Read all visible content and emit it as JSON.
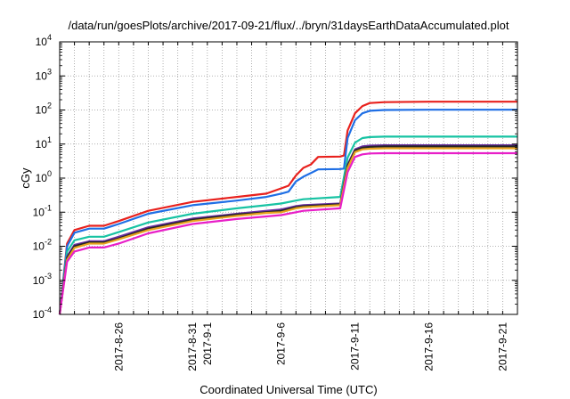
{
  "chart_data": {
    "type": "line",
    "title": "/data/run/goesPlots/archive/2017-09-21/flux/../bryn/31daysEarthDataAccumulated.plot",
    "xlabel": "Coordinated Universal Time (UTC)",
    "ylabel": "cGy",
    "xlim": [
      "2017-08-22",
      "2017-09-22"
    ],
    "ylim": [
      0.0001,
      10000
    ],
    "yscale": "log",
    "grid": true,
    "legend": "none",
    "x_ticks": [
      "2017-8-26",
      "2017-8-31",
      "2017-9-1",
      "2017-9-6",
      "2017-9-11",
      "2017-9-16",
      "2017-9-21"
    ],
    "y_ticks": [
      {
        "base": "10",
        "exp": "-4"
      },
      {
        "base": "10",
        "exp": "-3"
      },
      {
        "base": "10",
        "exp": "-2"
      },
      {
        "base": "10",
        "exp": "-1"
      },
      {
        "base": "10",
        "exp": "0"
      },
      {
        "base": "10",
        "exp": "1"
      },
      {
        "base": "10",
        "exp": "2"
      },
      {
        "base": "10",
        "exp": "3"
      },
      {
        "base": "10",
        "exp": "4"
      }
    ],
    "series": [
      {
        "color": "#e8211d",
        "x": [
          "2017-08-22",
          "2017-08-22T12:00",
          "2017-08-23",
          "2017-08-24",
          "2017-08-25",
          "2017-08-26",
          "2017-08-28",
          "2017-08-31",
          "2017-09-03",
          "2017-09-05",
          "2017-09-06",
          "2017-09-06T12:00",
          "2017-09-07",
          "2017-09-07T12:00",
          "2017-09-08",
          "2017-09-08T12:00",
          "2017-09-10",
          "2017-09-10T06:00",
          "2017-09-10T12:00",
          "2017-09-11",
          "2017-09-11T12:00",
          "2017-09-12",
          "2017-09-13",
          "2017-09-16",
          "2017-09-22"
        ],
        "y": [
          0.0001,
          0.012,
          0.03,
          0.04,
          0.04,
          0.055,
          0.11,
          0.2,
          0.28,
          0.35,
          0.5,
          0.6,
          1.2,
          2.0,
          2.5,
          4.2,
          4.3,
          4.6,
          25,
          80,
          130,
          160,
          170,
          175,
          175
        ]
      },
      {
        "color": "#1f6fe5",
        "x": [
          "2017-08-22",
          "2017-08-22T12:00",
          "2017-08-23",
          "2017-08-24",
          "2017-08-25",
          "2017-08-26",
          "2017-08-28",
          "2017-08-31",
          "2017-09-03",
          "2017-09-05",
          "2017-09-06",
          "2017-09-06T12:00",
          "2017-09-07",
          "2017-09-07T12:00",
          "2017-09-08",
          "2017-09-08T12:00",
          "2017-09-10",
          "2017-09-10T06:00",
          "2017-09-10T12:00",
          "2017-09-11",
          "2017-09-11T12:00",
          "2017-09-12",
          "2017-09-13",
          "2017-09-16",
          "2017-09-22"
        ],
        "y": [
          0.0001,
          0.01,
          0.025,
          0.033,
          0.033,
          0.045,
          0.09,
          0.16,
          0.22,
          0.28,
          0.35,
          0.4,
          0.8,
          1.1,
          1.4,
          1.8,
          1.85,
          1.9,
          15,
          50,
          80,
          95,
          100,
          102,
          102
        ]
      },
      {
        "color": "#17c3a3",
        "x": [
          "2017-08-22",
          "2017-08-22T12:00",
          "2017-08-23",
          "2017-08-24",
          "2017-08-25",
          "2017-08-26",
          "2017-08-28",
          "2017-08-31",
          "2017-09-03",
          "2017-09-05",
          "2017-09-06",
          "2017-09-07",
          "2017-09-07T12:00",
          "2017-09-10",
          "2017-09-10T12:00",
          "2017-09-11",
          "2017-09-11T12:00",
          "2017-09-12",
          "2017-09-13",
          "2017-09-22"
        ],
        "y": [
          0.0001,
          0.007,
          0.015,
          0.019,
          0.019,
          0.026,
          0.05,
          0.09,
          0.13,
          0.16,
          0.18,
          0.22,
          0.24,
          0.28,
          4,
          11,
          15,
          16,
          16.5,
          16.5
        ]
      },
      {
        "color": "#6a2fa3",
        "x": [
          "2017-08-22",
          "2017-08-22T12:00",
          "2017-08-23",
          "2017-08-24",
          "2017-08-25",
          "2017-08-26",
          "2017-08-28",
          "2017-08-31",
          "2017-09-03",
          "2017-09-05",
          "2017-09-06",
          "2017-09-07",
          "2017-09-07T12:00",
          "2017-09-10",
          "2017-09-10T12:00",
          "2017-09-11",
          "2017-09-11T12:00",
          "2017-09-12",
          "2017-09-13",
          "2017-09-22"
        ],
        "y": [
          0.0001,
          0.005,
          0.011,
          0.014,
          0.014,
          0.019,
          0.036,
          0.065,
          0.09,
          0.11,
          0.12,
          0.15,
          0.16,
          0.18,
          2.5,
          7,
          8.5,
          9,
          9.2,
          9.2
        ]
      },
      {
        "color": "#262626",
        "x": [
          "2017-08-22",
          "2017-08-22T12:00",
          "2017-08-23",
          "2017-08-24",
          "2017-08-25",
          "2017-08-26",
          "2017-08-28",
          "2017-08-31",
          "2017-09-03",
          "2017-09-05",
          "2017-09-06",
          "2017-09-07",
          "2017-09-07T12:00",
          "2017-09-10",
          "2017-09-10T12:00",
          "2017-09-11",
          "2017-09-11T12:00",
          "2017-09-12",
          "2017-09-13",
          "2017-09-22"
        ],
        "y": [
          0.0001,
          0.0045,
          0.01,
          0.013,
          0.013,
          0.017,
          0.033,
          0.06,
          0.085,
          0.1,
          0.11,
          0.14,
          0.15,
          0.17,
          2.3,
          6.5,
          7.8,
          8.2,
          8.5,
          8.5
        ]
      },
      {
        "color": "#e8a21d",
        "x": [
          "2017-08-22",
          "2017-08-22T12:00",
          "2017-08-23",
          "2017-08-24",
          "2017-08-25",
          "2017-08-26",
          "2017-08-28",
          "2017-08-31",
          "2017-09-03",
          "2017-09-05",
          "2017-09-06",
          "2017-09-07",
          "2017-09-07T12:00",
          "2017-09-10",
          "2017-09-10T12:00",
          "2017-09-11",
          "2017-09-11T12:00",
          "2017-09-12",
          "2017-09-13",
          "2017-09-22"
        ],
        "y": [
          0.0001,
          0.004,
          0.009,
          0.012,
          0.012,
          0.016,
          0.03,
          0.055,
          0.078,
          0.095,
          0.1,
          0.13,
          0.14,
          0.16,
          2.0,
          5.8,
          7,
          7.3,
          7.5,
          7.5
        ]
      },
      {
        "color": "#e81fc8",
        "x": [
          "2017-08-22",
          "2017-08-22T12:00",
          "2017-08-23",
          "2017-08-24",
          "2017-08-25",
          "2017-08-26",
          "2017-08-28",
          "2017-08-31",
          "2017-09-03",
          "2017-09-05",
          "2017-09-06",
          "2017-09-07",
          "2017-09-07T12:00",
          "2017-09-10",
          "2017-09-10T12:00",
          "2017-09-11",
          "2017-09-11T12:00",
          "2017-09-12",
          "2017-09-13",
          "2017-09-22"
        ],
        "y": [
          0.0001,
          0.0035,
          0.007,
          0.0092,
          0.0092,
          0.012,
          0.024,
          0.045,
          0.063,
          0.075,
          0.082,
          0.1,
          0.11,
          0.13,
          1.5,
          4.2,
          5.0,
          5.3,
          5.4,
          5.4
        ]
      }
    ]
  }
}
